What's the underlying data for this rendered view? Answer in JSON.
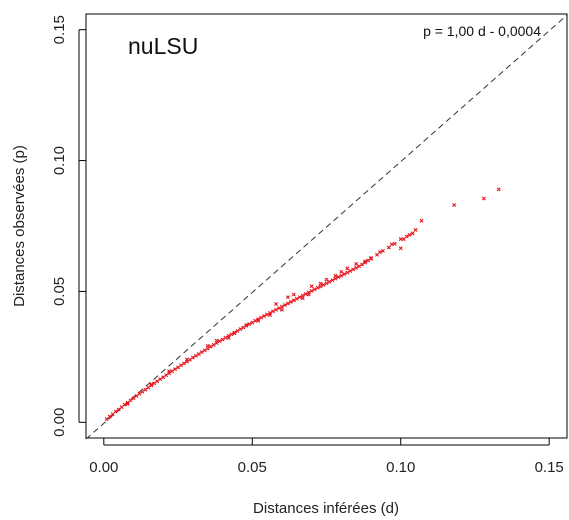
{
  "chart_data": {
    "type": "scatter",
    "title": "nuLSU",
    "annotation": "p = 1,00 d - 0,0004",
    "xlabel": "Distances inférées (d)",
    "ylabel": "Distances observées (p)",
    "xlim": [
      -0.006,
      0.156
    ],
    "ylim": [
      -0.006,
      0.156
    ],
    "xticks": [
      0.0,
      0.05,
      0.1,
      0.15
    ],
    "yticks": [
      0.0,
      0.05,
      0.1,
      0.15
    ],
    "xtick_labels": [
      "0.00",
      "0.05",
      "0.10",
      "0.15"
    ],
    "ytick_labels": [
      "0.00",
      "0.05",
      "0.10",
      "0.15"
    ],
    "grid": false,
    "marker_color": "#e8141c",
    "reference_line": {
      "slope": 1.0,
      "intercept": -0.0004,
      "style": "dashed",
      "color": "#333333"
    },
    "points": [
      [
        0.001,
        0.0012
      ],
      [
        0.002,
        0.0022
      ],
      [
        0.003,
        0.0031
      ],
      [
        0.004,
        0.0041
      ],
      [
        0.005,
        0.0049
      ],
      [
        0.006,
        0.0058
      ],
      [
        0.007,
        0.0067
      ],
      [
        0.008,
        0.0075
      ],
      [
        0.009,
        0.0084
      ],
      [
        0.01,
        0.0092
      ],
      [
        0.011,
        0.0101
      ],
      [
        0.012,
        0.0109
      ],
      [
        0.013,
        0.0117
      ],
      [
        0.014,
        0.0125
      ],
      [
        0.015,
        0.0133
      ],
      [
        0.016,
        0.0141
      ],
      [
        0.017,
        0.0149
      ],
      [
        0.018,
        0.0157
      ],
      [
        0.019,
        0.0165
      ],
      [
        0.02,
        0.0172
      ],
      [
        0.021,
        0.018
      ],
      [
        0.022,
        0.0188
      ],
      [
        0.023,
        0.0195
      ],
      [
        0.024,
        0.0203
      ],
      [
        0.025,
        0.021
      ],
      [
        0.026,
        0.0218
      ],
      [
        0.027,
        0.0225
      ],
      [
        0.028,
        0.0232
      ],
      [
        0.029,
        0.0239
      ],
      [
        0.03,
        0.0247
      ],
      [
        0.031,
        0.0254
      ],
      [
        0.032,
        0.0261
      ],
      [
        0.033,
        0.0268
      ],
      [
        0.034,
        0.0275
      ],
      [
        0.035,
        0.0282
      ],
      [
        0.036,
        0.0289
      ],
      [
        0.037,
        0.0296
      ],
      [
        0.038,
        0.0303
      ],
      [
        0.039,
        0.031
      ],
      [
        0.04,
        0.0316
      ],
      [
        0.041,
        0.0323
      ],
      [
        0.042,
        0.033
      ],
      [
        0.043,
        0.0336
      ],
      [
        0.044,
        0.0343
      ],
      [
        0.045,
        0.0349
      ],
      [
        0.046,
        0.0356
      ],
      [
        0.047,
        0.0362
      ],
      [
        0.048,
        0.0369
      ],
      [
        0.049,
        0.0375
      ],
      [
        0.05,
        0.0381
      ],
      [
        0.051,
        0.0388
      ],
      [
        0.052,
        0.0394
      ],
      [
        0.053,
        0.04
      ],
      [
        0.054,
        0.0406
      ],
      [
        0.055,
        0.0412
      ],
      [
        0.056,
        0.0418
      ],
      [
        0.057,
        0.0424
      ],
      [
        0.058,
        0.043
      ],
      [
        0.059,
        0.0436
      ],
      [
        0.06,
        0.0442
      ],
      [
        0.061,
        0.0448
      ],
      [
        0.062,
        0.0454
      ],
      [
        0.063,
        0.046
      ],
      [
        0.064,
        0.0466
      ],
      [
        0.065,
        0.0472
      ],
      [
        0.066,
        0.0478
      ],
      [
        0.067,
        0.0484
      ],
      [
        0.068,
        0.049
      ],
      [
        0.069,
        0.0496
      ],
      [
        0.07,
        0.0502
      ],
      [
        0.071,
        0.0508
      ],
      [
        0.072,
        0.0514
      ],
      [
        0.073,
        0.0519
      ],
      [
        0.074,
        0.0525
      ],
      [
        0.075,
        0.0531
      ],
      [
        0.076,
        0.0537
      ],
      [
        0.077,
        0.0543
      ],
      [
        0.078,
        0.0549
      ],
      [
        0.079,
        0.0555
      ],
      [
        0.08,
        0.056
      ],
      [
        0.081,
        0.0566
      ],
      [
        0.082,
        0.0572
      ],
      [
        0.083,
        0.0578
      ],
      [
        0.084,
        0.0584
      ],
      [
        0.085,
        0.059
      ],
      [
        0.086,
        0.0596
      ],
      [
        0.087,
        0.0603
      ],
      [
        0.088,
        0.061
      ],
      [
        0.089,
        0.0618
      ],
      [
        0.09,
        0.0625
      ],
      [
        0.092,
        0.064
      ],
      [
        0.094,
        0.0655
      ],
      [
        0.096,
        0.0668
      ],
      [
        0.098,
        0.0682
      ],
      [
        0.1,
        0.07
      ],
      [
        0.102,
        0.071
      ],
      [
        0.103,
        0.0716
      ],
      [
        0.104,
        0.0722
      ],
      [
        0.105,
        0.0735
      ],
      [
        0.107,
        0.077
      ],
      [
        0.118,
        0.083
      ],
      [
        0.128,
        0.0855
      ],
      [
        0.133,
        0.089
      ],
      [
        0.035,
        0.0292
      ],
      [
        0.042,
        0.0322
      ],
      [
        0.052,
        0.0388
      ],
      [
        0.058,
        0.0452
      ],
      [
        0.064,
        0.0488
      ],
      [
        0.067,
        0.0474
      ],
      [
        0.069,
        0.0488
      ],
      [
        0.07,
        0.052
      ],
      [
        0.073,
        0.053
      ],
      [
        0.075,
        0.0545
      ],
      [
        0.078,
        0.056
      ],
      [
        0.08,
        0.0575
      ],
      [
        0.082,
        0.0588
      ],
      [
        0.085,
        0.0605
      ],
      [
        0.088,
        0.0615
      ],
      [
        0.09,
        0.0628
      ],
      [
        0.093,
        0.065
      ],
      [
        0.097,
        0.068
      ],
      [
        0.1,
        0.0665
      ],
      [
        0.101,
        0.07
      ],
      [
        0.062,
        0.0478
      ],
      [
        0.06,
        0.043
      ],
      [
        0.056,
        0.041
      ],
      [
        0.048,
        0.0372
      ],
      [
        0.044,
        0.034
      ],
      [
        0.038,
        0.0312
      ],
      [
        0.028,
        0.024
      ],
      [
        0.022,
        0.0195
      ],
      [
        0.016,
        0.0145
      ],
      [
        0.008,
        0.007
      ]
    ]
  }
}
